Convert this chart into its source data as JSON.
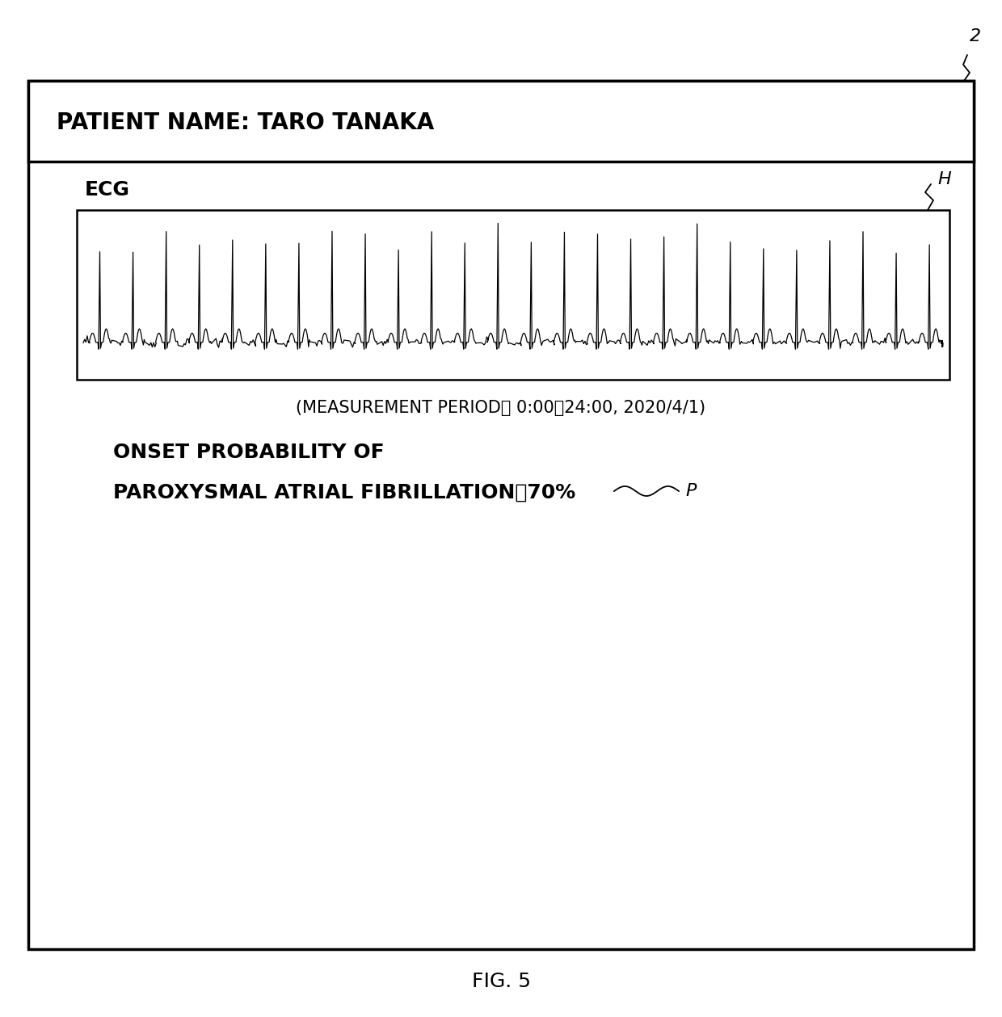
{
  "patient_name_label": "PATIENT NAME: TARO TANAKA",
  "ecg_label": "ECG",
  "measurement_period": "(MEASUREMENT PERIOD： 0:00～24:00, 2020/4/1)",
  "onset_probability_line1": "ONSET PROBABILITY OF",
  "onset_probability_line2": "PAROXYSMAL ATRIAL FIBRILLATION：70%",
  "fig_label": "FIG. 5",
  "label_H": "H",
  "label_2": "2",
  "label_P": "P",
  "bg_color": "#ffffff",
  "line_color": "#000000",
  "text_color": "#000000",
  "header_fontsize": 20,
  "ecg_label_fontsize": 18,
  "period_fontsize": 15,
  "onset_fontsize": 18,
  "fig_label_fontsize": 18,
  "annot_fontsize": 16
}
